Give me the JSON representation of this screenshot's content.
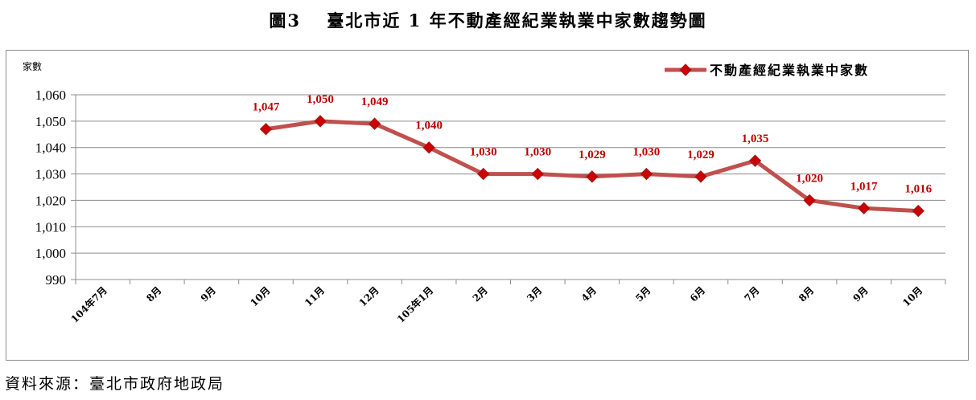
{
  "header": {
    "title": "圖3　 臺北市近 1 年不動產經紀業執業中家數趨勢圖"
  },
  "footer": {
    "source": "資料來源：臺北市政府地政局"
  },
  "chart_data": {
    "type": "line",
    "ylabel": "家數",
    "ylim": [
      990,
      1060
    ],
    "yticks": [
      "1,060",
      "1,050",
      "1,040",
      "1,030",
      "1,020",
      "1,010",
      "1,000",
      "990"
    ],
    "ytick_values": [
      1060,
      1050,
      1040,
      1030,
      1020,
      1010,
      1000,
      990
    ],
    "grid": true,
    "legend_position": "top-right",
    "categories": [
      "104年7月",
      "8月",
      "9月",
      "10月",
      "11月",
      "12月",
      "105年1月",
      "2月",
      "3月",
      "4月",
      "5月",
      "6月",
      "7月",
      "8月",
      "9月",
      "10月"
    ],
    "series": [
      {
        "name": "不動產經紀業執業中家數",
        "color": "#c0504d",
        "marker_color": "#cc0000",
        "label_color": "#c00000",
        "values": [
          null,
          null,
          null,
          1047,
          1050,
          1049,
          1040,
          1030,
          1030,
          1029,
          1030,
          1029,
          1035,
          1020,
          1017,
          1016
        ],
        "labels": [
          "",
          "",
          "",
          "1,047",
          "1,050",
          "1,049",
          "1,040",
          "1,030",
          "1,030",
          "1,029",
          "1,030",
          "1,029",
          "1,035",
          "1,020",
          "1,017",
          "1,016"
        ]
      }
    ]
  }
}
